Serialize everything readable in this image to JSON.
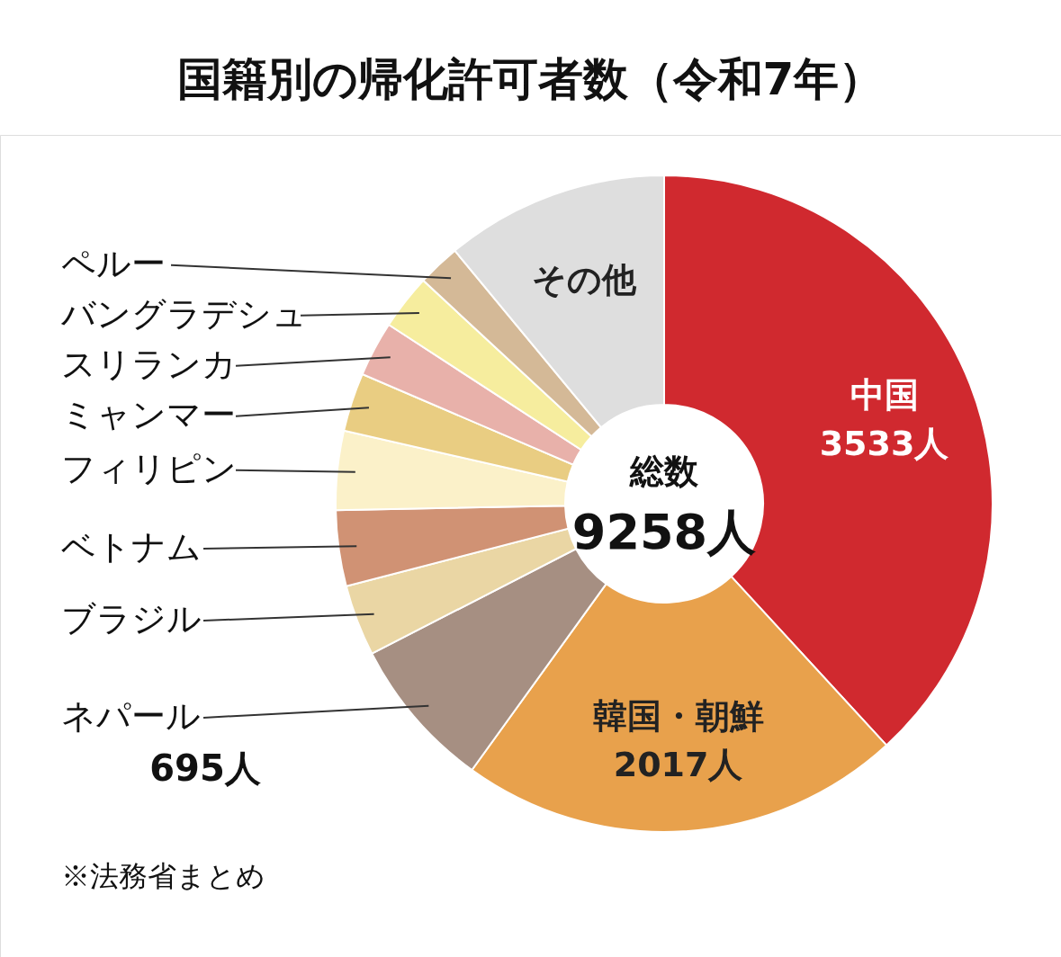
{
  "chart_data": {
    "type": "donut",
    "title": "国籍別の帰化許可者数（令和7年）",
    "categories": [
      "中国",
      "韓国・朝鮮",
      "ネパール",
      "ブラジル",
      "ベトナム",
      "フィリピン",
      "ミャンマー",
      "スリランカ",
      "バングラデシュ",
      "ペルー",
      "その他"
    ],
    "values": [
      3533,
      2017,
      695,
      324,
      345,
      360,
      267,
      252,
      252,
      195,
      1018
    ],
    "colors": [
      "#d0292f",
      "#e8a14c",
      "#a68f82",
      "#ead6a4",
      "#d09274",
      "#fbf1c9",
      "#e9cd82",
      "#e8b1aa",
      "#f6ed9e",
      "#d4b997",
      "#dedede"
    ],
    "value_labels": [
      "3533人",
      "2017人",
      "695人",
      null,
      null,
      null,
      null,
      null,
      null,
      null,
      null
    ],
    "annotations": [
      "総数",
      "9258人",
      "※法務省まとめ"
    ]
  }
}
